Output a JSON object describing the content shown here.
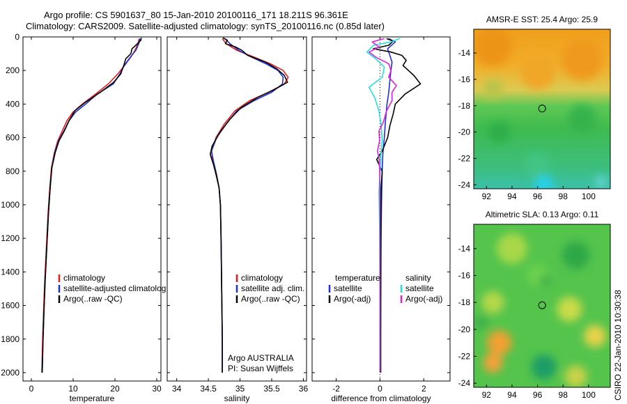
{
  "title": {
    "line1": "Argo profile: CS 5901637_80 15-Jan-2010 20100116_171 18.211S 96.361E",
    "line2": "Climatology: CARS2009. Satellite-adjusted climatology: synTS_20100116.nc (0.85d later)"
  },
  "side_label": "CSIRO 22-Jan-2010 10:30:38",
  "colors": {
    "climatology": "#e41a1c",
    "satellite": "#1f2fd6",
    "argo": "#000000",
    "salinity_satellite": "#22e0e0",
    "salinity_argo": "#e020e0"
  },
  "chart_data": [
    {
      "type": "line",
      "name": "temperature-profile",
      "xlabel": "temperature",
      "ylabel": "",
      "xlim": [
        -2,
        31
      ],
      "ylim": [
        2050,
        0
      ],
      "xticks": [
        0,
        10,
        20,
        30
      ],
      "yticks": [
        0,
        200,
        400,
        600,
        800,
        1000,
        1200,
        1400,
        1600,
        1800,
        2000
      ],
      "legend": {
        "position": "lower-right",
        "entries": [
          "climatology",
          "satellite-adjusted climatolog",
          "Argo(..raw -QC)"
        ]
      },
      "series": [
        {
          "name": "climatology",
          "color": "climatology",
          "points": [
            [
              25.8,
              10
            ],
            [
              25.5,
              40
            ],
            [
              24.8,
              80
            ],
            [
              23.8,
              120
            ],
            [
              22.3,
              170
            ],
            [
              20.7,
              220
            ],
            [
              18.4,
              280
            ],
            [
              15.4,
              340
            ],
            [
              12.2,
              400
            ],
            [
              9.9,
              450
            ],
            [
              8.5,
              500
            ],
            [
              7.4,
              560
            ],
            [
              6.3,
              620
            ],
            [
              5.5,
              690
            ],
            [
              4.8,
              780
            ],
            [
              4.4,
              900
            ],
            [
              4.0,
              1050
            ],
            [
              3.6,
              1250
            ],
            [
              3.2,
              1450
            ],
            [
              2.9,
              1650
            ],
            [
              2.7,
              1800
            ],
            [
              2.5,
              2000
            ]
          ]
        },
        {
          "name": "satellite-adjusted climatolog",
          "color": "satellite",
          "points": [
            [
              26.0,
              10
            ],
            [
              25.7,
              40
            ],
            [
              25.0,
              80
            ],
            [
              23.7,
              120
            ],
            [
              22.2,
              170
            ],
            [
              21.2,
              220
            ],
            [
              19.6,
              280
            ],
            [
              15.8,
              340
            ],
            [
              13.0,
              400
            ],
            [
              10.5,
              450
            ],
            [
              9.0,
              500
            ],
            [
              7.8,
              560
            ],
            [
              6.5,
              620
            ],
            [
              5.6,
              690
            ],
            [
              4.9,
              780
            ],
            [
              4.5,
              900
            ],
            [
              4.1,
              1050
            ],
            [
              3.7,
              1250
            ],
            [
              3.3,
              1450
            ],
            [
              3.0,
              1650
            ],
            [
              2.8,
              1800
            ],
            [
              2.6,
              2000
            ]
          ]
        },
        {
          "name": "Argo(..raw -QC)",
          "color": "argo",
          "points": [
            [
              26.3,
              5
            ],
            [
              26.2,
              20
            ],
            [
              25.4,
              40
            ],
            [
              24.1,
              70
            ],
            [
              23.8,
              100
            ],
            [
              22.6,
              130
            ],
            [
              22.1,
              170
            ],
            [
              21.4,
              220
            ],
            [
              19.7,
              270
            ],
            [
              16.5,
              330
            ],
            [
              12.9,
              390
            ],
            [
              10.4,
              440
            ],
            [
              9.0,
              500
            ],
            [
              7.9,
              560
            ],
            [
              6.6,
              620
            ],
            [
              5.7,
              690
            ],
            [
              4.9,
              780
            ],
            [
              4.5,
              900
            ],
            [
              4.1,
              1050
            ],
            [
              3.7,
              1250
            ],
            [
              3.3,
              1450
            ],
            [
              3.0,
              1650
            ],
            [
              2.8,
              1800
            ],
            [
              2.6,
              2000
            ]
          ]
        }
      ]
    },
    {
      "type": "line",
      "name": "salinity-profile",
      "xlabel": "salinity",
      "ylabel": "",
      "xlim": [
        33.85,
        36.05
      ],
      "ylim": [
        2050,
        0
      ],
      "xticks": [
        34,
        34.5,
        35,
        35.5,
        36
      ],
      "legend": {
        "position": "lower-right",
        "entries": [
          "climatology",
          "satellite adj. clim.",
          "Argo(..raw -QC)"
        ]
      },
      "annotations": [
        "Argo AUSTRALIA",
        "PI: Susan Wijffels"
      ],
      "series": [
        {
          "name": "climatology",
          "color": "climatology",
          "points": [
            [
              34.72,
              10
            ],
            [
              34.78,
              40
            ],
            [
              34.95,
              80
            ],
            [
              35.22,
              120
            ],
            [
              35.48,
              160
            ],
            [
              35.68,
              200
            ],
            [
              35.76,
              240
            ],
            [
              35.7,
              280
            ],
            [
              35.45,
              330
            ],
            [
              35.15,
              380
            ],
            [
              34.92,
              440
            ],
            [
              34.75,
              520
            ],
            [
              34.62,
              600
            ],
            [
              34.55,
              680
            ],
            [
              34.57,
              740
            ],
            [
              34.62,
              820
            ],
            [
              34.67,
              900
            ],
            [
              34.69,
              1000
            ],
            [
              34.7,
              1200
            ],
            [
              34.71,
              1500
            ],
            [
              34.72,
              1800
            ],
            [
              34.72,
              2000
            ]
          ]
        },
        {
          "name": "satellite adj. clim.",
          "color": "satellite",
          "points": [
            [
              34.76,
              10
            ],
            [
              34.84,
              40
            ],
            [
              34.98,
              80
            ],
            [
              35.18,
              120
            ],
            [
              35.41,
              160
            ],
            [
              35.6,
              200
            ],
            [
              35.68,
              240
            ],
            [
              35.67,
              280
            ],
            [
              35.5,
              330
            ],
            [
              35.22,
              380
            ],
            [
              34.95,
              440
            ],
            [
              34.78,
              520
            ],
            [
              34.63,
              600
            ],
            [
              34.55,
              680
            ],
            [
              34.58,
              740
            ],
            [
              34.63,
              820
            ],
            [
              34.67,
              900
            ],
            [
              34.69,
              1000
            ],
            [
              34.7,
              1200
            ],
            [
              34.71,
              1500
            ],
            [
              34.72,
              1800
            ],
            [
              34.72,
              2000
            ]
          ]
        },
        {
          "name": "Argo(..raw -QC)",
          "color": "argo",
          "points": [
            [
              34.73,
              5
            ],
            [
              34.8,
              20
            ],
            [
              34.77,
              40
            ],
            [
              34.93,
              60
            ],
            [
              35.03,
              80
            ],
            [
              35.12,
              110
            ],
            [
              35.4,
              150
            ],
            [
              35.58,
              190
            ],
            [
              35.7,
              230
            ],
            [
              35.75,
              270
            ],
            [
              35.56,
              310
            ],
            [
              35.28,
              360
            ],
            [
              35.02,
              420
            ],
            [
              34.84,
              490
            ],
            [
              34.68,
              570
            ],
            [
              34.56,
              650
            ],
            [
              34.53,
              700
            ],
            [
              34.58,
              760
            ],
            [
              34.63,
              830
            ],
            [
              34.67,
              900
            ],
            [
              34.69,
              1000
            ],
            [
              34.7,
              1200
            ],
            [
              34.71,
              1500
            ],
            [
              34.72,
              1800
            ],
            [
              34.72,
              2000
            ]
          ]
        }
      ]
    },
    {
      "type": "line",
      "name": "difference-profile",
      "xlabel": "difference from climatology",
      "ylabel": "",
      "xlim": [
        -3.1,
        3.2
      ],
      "ylim": [
        2050,
        0
      ],
      "xticks": [
        -2,
        0,
        2
      ],
      "legend": {
        "position": "lower-right",
        "entries": [
          "temperature",
          "satellite",
          "Argo(-adj)",
          "salinity",
          "satellite",
          "Argo(-adj)"
        ]
      },
      "series": [
        {
          "name": "satellite",
          "group": "temperature",
          "color": "satellite",
          "points": [
            [
              0.4,
              10
            ],
            [
              0.7,
              30
            ],
            [
              0.35,
              70
            ],
            [
              0.45,
              110
            ],
            [
              0.55,
              150
            ],
            [
              0.5,
              200
            ],
            [
              0.45,
              260
            ],
            [
              0.4,
              330
            ],
            [
              0.32,
              400
            ],
            [
              0.25,
              500
            ],
            [
              0.2,
              600
            ],
            [
              0.13,
              700
            ],
            [
              0.1,
              800
            ],
            [
              0.07,
              1000
            ],
            [
              0.05,
              1200
            ],
            [
              0.04,
              1500
            ],
            [
              0.03,
              1800
            ],
            [
              0.03,
              2000
            ]
          ]
        },
        {
          "name": "Argo(-adj)",
          "group": "temperature",
          "color": "argo",
          "points": [
            [
              0.3,
              10
            ],
            [
              0.6,
              25
            ],
            [
              0.4,
              50
            ],
            [
              -0.3,
              70
            ],
            [
              0.5,
              90
            ],
            [
              1.0,
              110
            ],
            [
              1.2,
              140
            ],
            [
              1.05,
              170
            ],
            [
              1.3,
              200
            ],
            [
              1.55,
              230
            ],
            [
              1.85,
              280
            ],
            [
              1.15,
              340
            ],
            [
              0.7,
              400
            ],
            [
              0.6,
              460
            ],
            [
              0.45,
              530
            ],
            [
              0.35,
              600
            ],
            [
              0.1,
              680
            ],
            [
              -0.15,
              730
            ],
            [
              0.1,
              800
            ],
            [
              0.05,
              900
            ],
            [
              0.04,
              1100
            ],
            [
              0.03,
              1300
            ],
            [
              0.03,
              1600
            ],
            [
              0.03,
              1800
            ],
            [
              0.03,
              2000
            ]
          ]
        },
        {
          "name": "satellite",
          "group": "salinity",
          "color": "salinity_satellite",
          "points": [
            [
              0.9,
              10
            ],
            [
              0.5,
              30
            ],
            [
              -0.3,
              50
            ],
            [
              -0.6,
              90
            ],
            [
              -0.2,
              130
            ],
            [
              0.2,
              180
            ],
            [
              0.1,
              240
            ],
            [
              -0.5,
              300
            ],
            [
              -0.25,
              360
            ],
            [
              -0.05,
              440
            ],
            [
              0.05,
              520
            ],
            [
              0.1,
              620
            ],
            [
              0.03,
              720
            ],
            [
              0.0,
              820
            ],
            [
              -0.05,
              920
            ],
            [
              -0.02,
              1100
            ],
            [
              -0.01,
              1300
            ],
            [
              0.0,
              1600
            ],
            [
              0.0,
              2000
            ]
          ]
        },
        {
          "name": "Argo(-adj)",
          "group": "salinity",
          "color": "salinity_argo",
          "points": [
            [
              0.2,
              10
            ],
            [
              -0.35,
              30
            ],
            [
              -0.05,
              60
            ],
            [
              -0.5,
              90
            ],
            [
              -0.2,
              120
            ],
            [
              0.4,
              160
            ],
            [
              0.5,
              200
            ],
            [
              0.4,
              240
            ],
            [
              0.75,
              290
            ],
            [
              0.55,
              330
            ],
            [
              0.55,
              380
            ],
            [
              0.3,
              440
            ],
            [
              0.15,
              510
            ],
            [
              -0.05,
              560
            ],
            [
              -0.02,
              620
            ],
            [
              -0.12,
              680
            ],
            [
              -0.05,
              720
            ],
            [
              -0.02,
              780
            ],
            [
              0.0,
              900
            ],
            [
              0.0,
              1100
            ],
            [
              0.0,
              1500
            ],
            [
              0.0,
              2000
            ]
          ]
        }
      ]
    },
    {
      "type": "heatmap",
      "name": "sst-map",
      "title": "AMSR-E SST: 25.4 Argo: 25.9",
      "xlim": [
        91,
        101.7
      ],
      "ylim": [
        -24.3,
        -12.2
      ],
      "xticks": [
        92,
        94,
        96,
        98,
        100
      ],
      "yticks": [
        -14,
        -16,
        -18,
        -20,
        -22,
        -24
      ],
      "marker": {
        "lon": 96.361,
        "lat": -18.211
      }
    },
    {
      "type": "heatmap",
      "name": "sla-map",
      "title": "Altimetric SLA: 0.13 Argo: 0.11",
      "xlim": [
        91,
        101.7
      ],
      "ylim": [
        -24.3,
        -12.2
      ],
      "xticks": [
        92,
        94,
        96,
        98,
        100
      ],
      "yticks": [
        -14,
        -16,
        -18,
        -20,
        -22,
        -24
      ],
      "marker": {
        "lon": 96.361,
        "lat": -18.211
      }
    }
  ]
}
